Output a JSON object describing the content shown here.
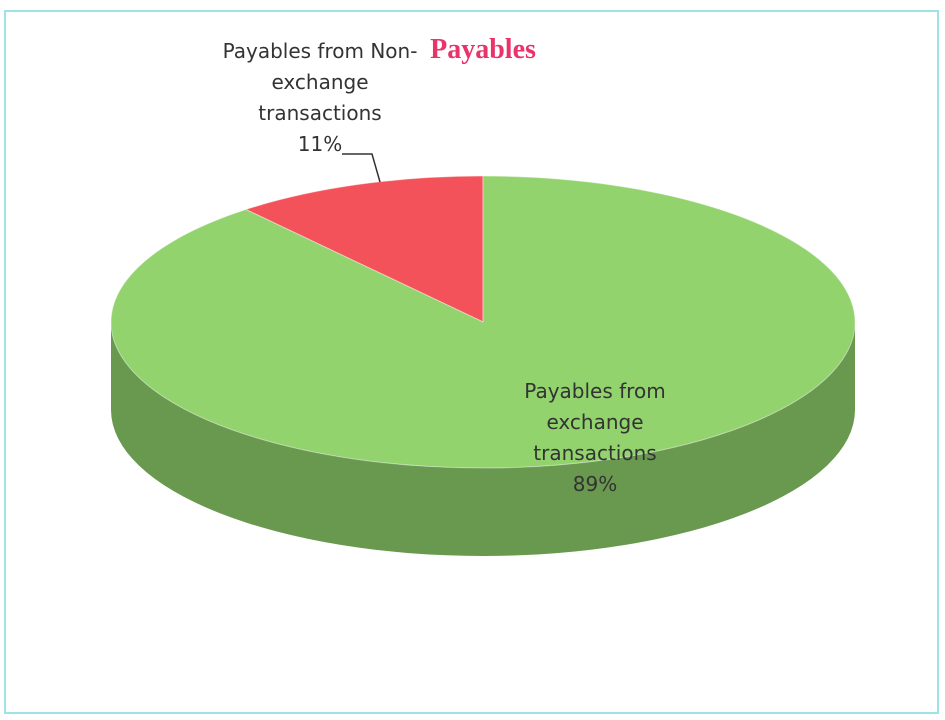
{
  "chart_data": {
    "type": "pie",
    "title": "Payables",
    "categories": [
      "Payables from Non-exchange transactions",
      "Payables from exchange transactions"
    ],
    "values": [
      11,
      89
    ],
    "value_labels": [
      "11%",
      "89%"
    ],
    "colors": [
      "#f4525a",
      "#92d36e"
    ]
  }
}
